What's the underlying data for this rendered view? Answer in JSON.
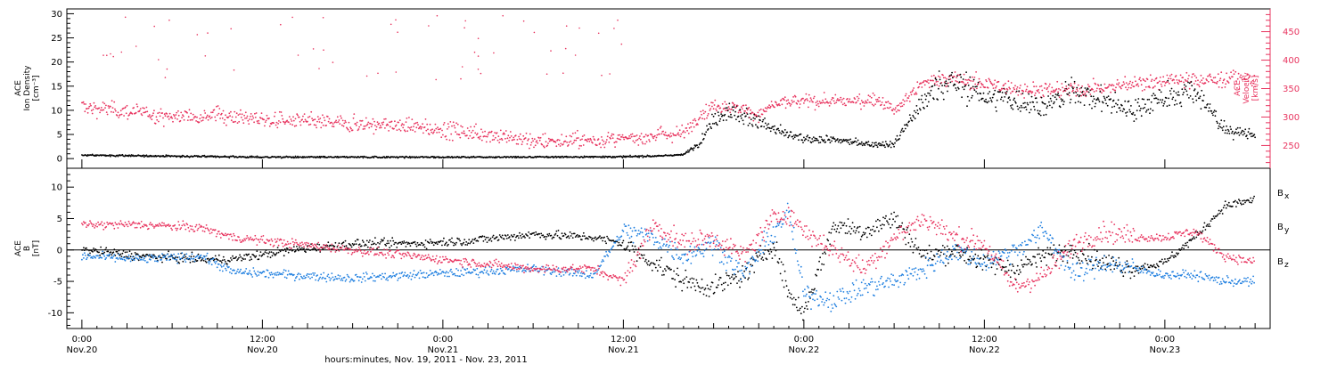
{
  "colors": {
    "black": "#000000",
    "red": "#e8345f",
    "blue": "#1f7fe0"
  },
  "chart_data": [
    {
      "type": "scatter",
      "panel": "top",
      "ylabel_left_lines": [
        "ACE",
        "Ion Density",
        "[cm⁻³]"
      ],
      "ylabel_right_lines": [
        "ACE",
        "Velocity",
        "[km/s]"
      ],
      "ylim_left": [
        -2,
        31
      ],
      "ylim_right": [
        210,
        490
      ],
      "yticks_left": [
        0,
        5,
        10,
        15,
        20,
        25,
        30
      ],
      "yticks_right": [
        250,
        300,
        350,
        400,
        450
      ],
      "series": [
        {
          "axis": "left",
          "color": "#000000",
          "x_hours": [
            0,
            6,
            12,
            18,
            24,
            30,
            36,
            38,
            40,
            41,
            42,
            43,
            44,
            46,
            48,
            50,
            52,
            54,
            55,
            56,
            57,
            58,
            60,
            62,
            64,
            66,
            68,
            70,
            72,
            74,
            76,
            78
          ],
          "y": [
            0.7,
            0.5,
            0.3,
            0.3,
            0.3,
            0.3,
            0.4,
            0.5,
            0.8,
            3,
            8,
            10,
            9,
            6,
            4,
            4,
            3,
            3,
            8,
            12,
            15,
            16,
            13,
            12,
            11,
            14,
            12,
            10,
            13,
            14,
            6,
            5
          ]
        },
        {
          "axis": "right",
          "color": "#e8345f",
          "x_hours": [
            0,
            3,
            6,
            9,
            12,
            15,
            18,
            21,
            24,
            27,
            30,
            33,
            36,
            38,
            40,
            41,
            42,
            43,
            44,
            45,
            46,
            48,
            50,
            52,
            53,
            54,
            55,
            56,
            57,
            58,
            60,
            62,
            64,
            66,
            68,
            70,
            72,
            74,
            76,
            78
          ],
          "y": [
            318,
            310,
            300,
            305,
            295,
            292,
            288,
            285,
            278,
            270,
            258,
            258,
            260,
            268,
            272,
            300,
            320,
            318,
            312,
            305,
            322,
            328,
            326,
            330,
            330,
            310,
            335,
            360,
            368,
            366,
            358,
            350,
            346,
            348,
            350,
            360,
            362,
            365,
            366,
            365
          ]
        }
      ],
      "note": "curves are central trend estimates; scattered data rendered as jittered dots"
    },
    {
      "type": "scatter",
      "panel": "bottom",
      "ylabel_lines": [
        "ACE",
        "B",
        "[nT]"
      ],
      "ylim": [
        -12.5,
        13
      ],
      "yticks": [
        -10,
        -5,
        0,
        5,
        10
      ],
      "series": [
        {
          "name": "Bx",
          "color": "#000000",
          "x_hours": [
            0,
            4,
            8,
            10,
            14,
            18,
            22,
            26,
            30,
            34,
            36,
            38,
            40,
            42,
            44,
            46,
            47,
            48,
            50,
            52,
            54,
            56,
            58,
            60,
            62,
            64,
            66,
            68,
            70,
            72,
            74,
            76,
            78
          ],
          "y": [
            0,
            -1,
            -1.5,
            -1.5,
            0,
            1,
            1,
            1.5,
            2.5,
            2,
            1,
            -2,
            -5,
            -6,
            -4,
            1,
            -7,
            -10,
            4,
            3,
            5,
            -1,
            0,
            -2,
            -3,
            -1,
            0,
            -2,
            -3,
            -2,
            2,
            7,
            8
          ]
        },
        {
          "name": "By",
          "color": "#1f7fe0",
          "x_hours": [
            0,
            4,
            8,
            10,
            14,
            18,
            22,
            26,
            30,
            34,
            36,
            38,
            40,
            42,
            44,
            46,
            47,
            48,
            50,
            52,
            54,
            56,
            58,
            60,
            62,
            64,
            66,
            68,
            70,
            72,
            74,
            76,
            78
          ],
          "y": [
            -1,
            -1.5,
            -1,
            -3.5,
            -4,
            -4.5,
            -4,
            -3.5,
            -3,
            -4,
            3,
            2,
            -1,
            1,
            -4,
            3,
            6,
            -7,
            -8,
            -6,
            -5,
            -3,
            0,
            -2,
            0,
            3,
            -4,
            -2,
            -3,
            -4,
            -4,
            -5,
            -5
          ]
        },
        {
          "name": "Bz",
          "color": "#e8345f",
          "x_hours": [
            0,
            4,
            8,
            10,
            14,
            18,
            22,
            26,
            30,
            34,
            36,
            38,
            40,
            42,
            44,
            46,
            47,
            48,
            50,
            52,
            54,
            56,
            58,
            60,
            62,
            64,
            66,
            68,
            70,
            72,
            74,
            76,
            78
          ],
          "y": [
            4,
            4,
            3.5,
            2,
            1,
            0,
            -1,
            -2,
            -3,
            -3,
            -5,
            4,
            1,
            2,
            -1,
            5,
            6,
            3,
            0,
            -3,
            2,
            5,
            2,
            1,
            -6,
            -4,
            1,
            3,
            2,
            2,
            3,
            -1,
            -2
          ]
        }
      ],
      "legend": [
        "B",
        "B",
        "B"
      ],
      "legend_subscripts": [
        "x",
        "y",
        "z"
      ]
    }
  ],
  "xaxis": {
    "ticks": [
      {
        "time": "0:00",
        "date": "Nov.20",
        "hours": 0
      },
      {
        "time": "12:00",
        "date": "Nov.20",
        "hours": 12
      },
      {
        "time": "0:00",
        "date": "Nov.21",
        "hours": 24
      },
      {
        "time": "12:00",
        "date": "Nov.21",
        "hours": 36
      },
      {
        "time": "0:00",
        "date": "Nov.22",
        "hours": 48
      },
      {
        "time": "12:00",
        "date": "Nov.22",
        "hours": 60
      },
      {
        "time": "0:00",
        "date": "Nov.23",
        "hours": 72
      }
    ],
    "xlim_hours": [
      -1,
      79
    ],
    "label": "hours:minutes, Nov. 19, 2011 - Nov. 23, 2011"
  }
}
